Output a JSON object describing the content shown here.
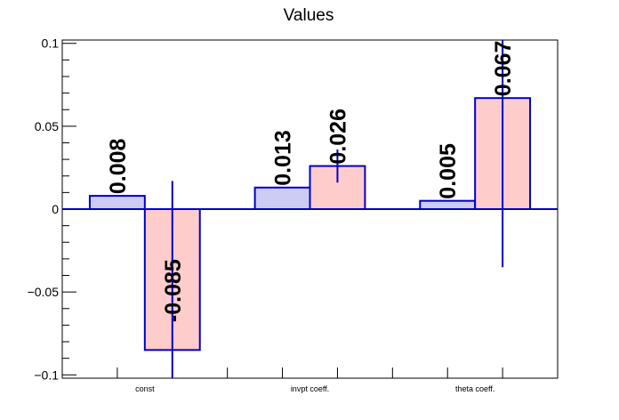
{
  "chart_data": {
    "type": "bar",
    "title": "Values",
    "xlabel": "",
    "ylabel": "",
    "categories": [
      "const",
      "invpt coeff.",
      "theta coeff."
    ],
    "ylim": [
      -0.102,
      0.102
    ],
    "yticks": [
      -0.1,
      -0.05,
      0,
      0.05,
      0.1
    ],
    "ytick_labels": [
      "−0.1",
      "−0.05",
      "0",
      "0.05",
      "0.1"
    ],
    "grid": false,
    "legend": "none",
    "series": [
      {
        "values": [
          0.008,
          0.013,
          0.005
        ],
        "labels": [
          "0.008",
          "0.013",
          "0.005"
        ],
        "errors": [
          0,
          0,
          0
        ],
        "fill": "#ccccf5",
        "stroke": "#0000cc"
      },
      {
        "values": [
          -0.085,
          0.026,
          0.067
        ],
        "labels": [
          "-0.085",
          "0.026",
          "0.067"
        ],
        "errors": [
          0.102,
          0.01,
          0.102
        ],
        "fill": "#ffcccc",
        "stroke": "#0000cc"
      }
    ],
    "colors": {
      "axis": "#000000",
      "zero_line": "#0000cc",
      "error_bar": "#0000cc"
    }
  }
}
